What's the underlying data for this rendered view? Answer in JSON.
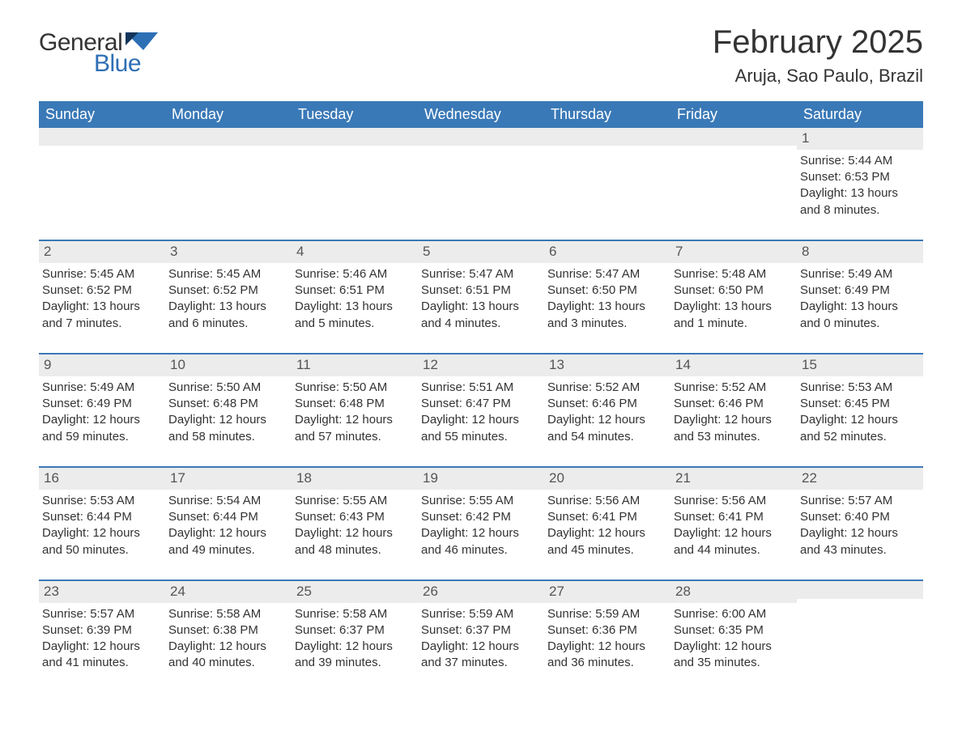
{
  "colors": {
    "header_bg": "#3a79b7",
    "header_text": "#ffffff",
    "daynum_bg": "#ececec",
    "row_border": "#3a79b7",
    "body_text": "#333333",
    "logo_blue": "#2d6fb5",
    "page_bg": "#ffffff"
  },
  "typography": {
    "title_fontsize": 40,
    "location_fontsize": 22,
    "dayheader_fontsize": 18,
    "daynum_fontsize": 17,
    "cell_fontsize": 15,
    "font_family": "Arial"
  },
  "logo": {
    "general": "General",
    "blue": "Blue"
  },
  "title": "February 2025",
  "location": "Aruja, Sao Paulo, Brazil",
  "day_names": [
    "Sunday",
    "Monday",
    "Tuesday",
    "Wednesday",
    "Thursday",
    "Friday",
    "Saturday"
  ],
  "calendar": {
    "type": "table",
    "columns": 7,
    "rows": 5
  },
  "weeks": [
    [
      {
        "n": "",
        "sr": "",
        "ss": "",
        "dl": ""
      },
      {
        "n": "",
        "sr": "",
        "ss": "",
        "dl": ""
      },
      {
        "n": "",
        "sr": "",
        "ss": "",
        "dl": ""
      },
      {
        "n": "",
        "sr": "",
        "ss": "",
        "dl": ""
      },
      {
        "n": "",
        "sr": "",
        "ss": "",
        "dl": ""
      },
      {
        "n": "",
        "sr": "",
        "ss": "",
        "dl": ""
      },
      {
        "n": "1",
        "sr": "Sunrise: 5:44 AM",
        "ss": "Sunset: 6:53 PM",
        "dl": "Daylight: 13 hours and 8 minutes."
      }
    ],
    [
      {
        "n": "2",
        "sr": "Sunrise: 5:45 AM",
        "ss": "Sunset: 6:52 PM",
        "dl": "Daylight: 13 hours and 7 minutes."
      },
      {
        "n": "3",
        "sr": "Sunrise: 5:45 AM",
        "ss": "Sunset: 6:52 PM",
        "dl": "Daylight: 13 hours and 6 minutes."
      },
      {
        "n": "4",
        "sr": "Sunrise: 5:46 AM",
        "ss": "Sunset: 6:51 PM",
        "dl": "Daylight: 13 hours and 5 minutes."
      },
      {
        "n": "5",
        "sr": "Sunrise: 5:47 AM",
        "ss": "Sunset: 6:51 PM",
        "dl": "Daylight: 13 hours and 4 minutes."
      },
      {
        "n": "6",
        "sr": "Sunrise: 5:47 AM",
        "ss": "Sunset: 6:50 PM",
        "dl": "Daylight: 13 hours and 3 minutes."
      },
      {
        "n": "7",
        "sr": "Sunrise: 5:48 AM",
        "ss": "Sunset: 6:50 PM",
        "dl": "Daylight: 13 hours and 1 minute."
      },
      {
        "n": "8",
        "sr": "Sunrise: 5:49 AM",
        "ss": "Sunset: 6:49 PM",
        "dl": "Daylight: 13 hours and 0 minutes."
      }
    ],
    [
      {
        "n": "9",
        "sr": "Sunrise: 5:49 AM",
        "ss": "Sunset: 6:49 PM",
        "dl": "Daylight: 12 hours and 59 minutes."
      },
      {
        "n": "10",
        "sr": "Sunrise: 5:50 AM",
        "ss": "Sunset: 6:48 PM",
        "dl": "Daylight: 12 hours and 58 minutes."
      },
      {
        "n": "11",
        "sr": "Sunrise: 5:50 AM",
        "ss": "Sunset: 6:48 PM",
        "dl": "Daylight: 12 hours and 57 minutes."
      },
      {
        "n": "12",
        "sr": "Sunrise: 5:51 AM",
        "ss": "Sunset: 6:47 PM",
        "dl": "Daylight: 12 hours and 55 minutes."
      },
      {
        "n": "13",
        "sr": "Sunrise: 5:52 AM",
        "ss": "Sunset: 6:46 PM",
        "dl": "Daylight: 12 hours and 54 minutes."
      },
      {
        "n": "14",
        "sr": "Sunrise: 5:52 AM",
        "ss": "Sunset: 6:46 PM",
        "dl": "Daylight: 12 hours and 53 minutes."
      },
      {
        "n": "15",
        "sr": "Sunrise: 5:53 AM",
        "ss": "Sunset: 6:45 PM",
        "dl": "Daylight: 12 hours and 52 minutes."
      }
    ],
    [
      {
        "n": "16",
        "sr": "Sunrise: 5:53 AM",
        "ss": "Sunset: 6:44 PM",
        "dl": "Daylight: 12 hours and 50 minutes."
      },
      {
        "n": "17",
        "sr": "Sunrise: 5:54 AM",
        "ss": "Sunset: 6:44 PM",
        "dl": "Daylight: 12 hours and 49 minutes."
      },
      {
        "n": "18",
        "sr": "Sunrise: 5:55 AM",
        "ss": "Sunset: 6:43 PM",
        "dl": "Daylight: 12 hours and 48 minutes."
      },
      {
        "n": "19",
        "sr": "Sunrise: 5:55 AM",
        "ss": "Sunset: 6:42 PM",
        "dl": "Daylight: 12 hours and 46 minutes."
      },
      {
        "n": "20",
        "sr": "Sunrise: 5:56 AM",
        "ss": "Sunset: 6:41 PM",
        "dl": "Daylight: 12 hours and 45 minutes."
      },
      {
        "n": "21",
        "sr": "Sunrise: 5:56 AM",
        "ss": "Sunset: 6:41 PM",
        "dl": "Daylight: 12 hours and 44 minutes."
      },
      {
        "n": "22",
        "sr": "Sunrise: 5:57 AM",
        "ss": "Sunset: 6:40 PM",
        "dl": "Daylight: 12 hours and 43 minutes."
      }
    ],
    [
      {
        "n": "23",
        "sr": "Sunrise: 5:57 AM",
        "ss": "Sunset: 6:39 PM",
        "dl": "Daylight: 12 hours and 41 minutes."
      },
      {
        "n": "24",
        "sr": "Sunrise: 5:58 AM",
        "ss": "Sunset: 6:38 PM",
        "dl": "Daylight: 12 hours and 40 minutes."
      },
      {
        "n": "25",
        "sr": "Sunrise: 5:58 AM",
        "ss": "Sunset: 6:37 PM",
        "dl": "Daylight: 12 hours and 39 minutes."
      },
      {
        "n": "26",
        "sr": "Sunrise: 5:59 AM",
        "ss": "Sunset: 6:37 PM",
        "dl": "Daylight: 12 hours and 37 minutes."
      },
      {
        "n": "27",
        "sr": "Sunrise: 5:59 AM",
        "ss": "Sunset: 6:36 PM",
        "dl": "Daylight: 12 hours and 36 minutes."
      },
      {
        "n": "28",
        "sr": "Sunrise: 6:00 AM",
        "ss": "Sunset: 6:35 PM",
        "dl": "Daylight: 12 hours and 35 minutes."
      },
      {
        "n": "",
        "sr": "",
        "ss": "",
        "dl": ""
      }
    ]
  ]
}
